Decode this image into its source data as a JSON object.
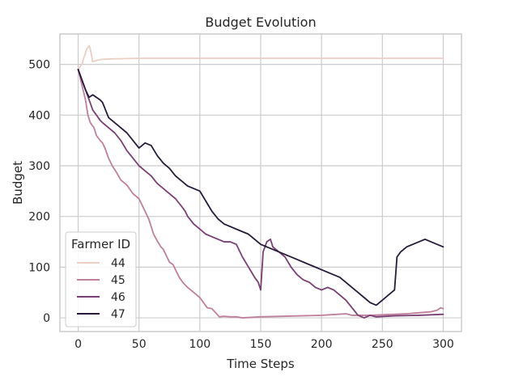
{
  "chart_data": {
    "type": "line",
    "title": "Budget Evolution",
    "xlabel": "Time Steps",
    "ylabel": "Budget",
    "xlim": [
      -15,
      315
    ],
    "ylim": [
      -27,
      560
    ],
    "xticks": [
      0,
      50,
      100,
      150,
      200,
      250,
      300
    ],
    "yticks": [
      0,
      100,
      200,
      300,
      400,
      500
    ],
    "grid": true,
    "legend": {
      "title": "Farmer ID",
      "placement": "lower-left"
    },
    "series": [
      {
        "name": "44",
        "color": "#ebcec4",
        "points": [
          [
            0,
            490
          ],
          [
            3,
            500
          ],
          [
            5,
            515
          ],
          [
            7,
            530
          ],
          [
            9,
            537
          ],
          [
            10,
            530
          ],
          [
            12,
            505
          ],
          [
            14,
            507
          ],
          [
            17,
            509
          ],
          [
            20,
            510
          ],
          [
            30,
            511
          ],
          [
            50,
            512
          ],
          [
            100,
            512
          ],
          [
            200,
            512
          ],
          [
            300,
            512
          ]
        ]
      },
      {
        "name": "45",
        "color": "#c07f9c",
        "points": [
          [
            0,
            490
          ],
          [
            2,
            470
          ],
          [
            4,
            450
          ],
          [
            6,
            430
          ],
          [
            8,
            400
          ],
          [
            10,
            385
          ],
          [
            13,
            375
          ],
          [
            15,
            360
          ],
          [
            18,
            350
          ],
          [
            20,
            345
          ],
          [
            22,
            335
          ],
          [
            25,
            315
          ],
          [
            28,
            300
          ],
          [
            32,
            285
          ],
          [
            35,
            272
          ],
          [
            40,
            262
          ],
          [
            45,
            245
          ],
          [
            50,
            235
          ],
          [
            55,
            210
          ],
          [
            58,
            195
          ],
          [
            60,
            180
          ],
          [
            62,
            165
          ],
          [
            65,
            152
          ],
          [
            68,
            140
          ],
          [
            70,
            135
          ],
          [
            72,
            125
          ],
          [
            75,
            110
          ],
          [
            78,
            105
          ],
          [
            80,
            95
          ],
          [
            83,
            80
          ],
          [
            86,
            70
          ],
          [
            90,
            60
          ],
          [
            95,
            50
          ],
          [
            100,
            40
          ],
          [
            103,
            30
          ],
          [
            106,
            20
          ],
          [
            110,
            18
          ],
          [
            113,
            10
          ],
          [
            116,
            2
          ],
          [
            120,
            3
          ],
          [
            125,
            2
          ],
          [
            130,
            2
          ],
          [
            135,
            0
          ],
          [
            150,
            2
          ],
          [
            200,
            5
          ],
          [
            220,
            8
          ],
          [
            225,
            5
          ],
          [
            240,
            5
          ],
          [
            260,
            7
          ],
          [
            270,
            8
          ],
          [
            280,
            10
          ],
          [
            290,
            12
          ],
          [
            295,
            15
          ],
          [
            298,
            20
          ],
          [
            300,
            18
          ]
        ]
      },
      {
        "name": "46",
        "color": "#7a3f74",
        "points": [
          [
            0,
            490
          ],
          [
            3,
            470
          ],
          [
            6,
            450
          ],
          [
            9,
            430
          ],
          [
            12,
            410
          ],
          [
            15,
            400
          ],
          [
            18,
            390
          ],
          [
            20,
            385
          ],
          [
            25,
            375
          ],
          [
            30,
            365
          ],
          [
            35,
            350
          ],
          [
            40,
            330
          ],
          [
            45,
            315
          ],
          [
            50,
            300
          ],
          [
            55,
            290
          ],
          [
            60,
            280
          ],
          [
            65,
            265
          ],
          [
            70,
            255
          ],
          [
            75,
            245
          ],
          [
            80,
            235
          ],
          [
            85,
            220
          ],
          [
            88,
            210
          ],
          [
            90,
            200
          ],
          [
            95,
            185
          ],
          [
            100,
            175
          ],
          [
            105,
            165
          ],
          [
            110,
            160
          ],
          [
            115,
            155
          ],
          [
            120,
            150
          ],
          [
            125,
            150
          ],
          [
            130,
            145
          ],
          [
            135,
            120
          ],
          [
            140,
            100
          ],
          [
            145,
            80
          ],
          [
            148,
            70
          ],
          [
            150,
            55
          ],
          [
            152,
            130
          ],
          [
            155,
            150
          ],
          [
            158,
            155
          ],
          [
            160,
            140
          ],
          [
            165,
            130
          ],
          [
            170,
            120
          ],
          [
            175,
            100
          ],
          [
            180,
            85
          ],
          [
            185,
            75
          ],
          [
            190,
            70
          ],
          [
            195,
            60
          ],
          [
            200,
            55
          ],
          [
            205,
            60
          ],
          [
            210,
            55
          ],
          [
            215,
            45
          ],
          [
            220,
            35
          ],
          [
            225,
            20
          ],
          [
            230,
            5
          ],
          [
            235,
            0
          ],
          [
            240,
            5
          ],
          [
            245,
            2
          ],
          [
            260,
            4
          ],
          [
            280,
            5
          ],
          [
            300,
            7
          ]
        ]
      },
      {
        "name": "47",
        "color": "#271b3b",
        "points": [
          [
            0,
            490
          ],
          [
            3,
            470
          ],
          [
            6,
            450
          ],
          [
            9,
            435
          ],
          [
            12,
            440
          ],
          [
            15,
            435
          ],
          [
            18,
            430
          ],
          [
            20,
            425
          ],
          [
            25,
            395
          ],
          [
            30,
            385
          ],
          [
            35,
            375
          ],
          [
            40,
            365
          ],
          [
            45,
            350
          ],
          [
            50,
            335
          ],
          [
            55,
            345
          ],
          [
            60,
            340
          ],
          [
            65,
            320
          ],
          [
            70,
            305
          ],
          [
            75,
            295
          ],
          [
            80,
            280
          ],
          [
            85,
            270
          ],
          [
            90,
            260
          ],
          [
            95,
            255
          ],
          [
            100,
            250
          ],
          [
            105,
            230
          ],
          [
            110,
            210
          ],
          [
            115,
            195
          ],
          [
            120,
            185
          ],
          [
            125,
            180
          ],
          [
            130,
            175
          ],
          [
            135,
            170
          ],
          [
            140,
            165
          ],
          [
            145,
            155
          ],
          [
            150,
            145
          ],
          [
            155,
            140
          ],
          [
            160,
            135
          ],
          [
            165,
            130
          ],
          [
            170,
            125
          ],
          [
            175,
            120
          ],
          [
            180,
            115
          ],
          [
            185,
            110
          ],
          [
            190,
            105
          ],
          [
            195,
            100
          ],
          [
            200,
            95
          ],
          [
            205,
            90
          ],
          [
            210,
            85
          ],
          [
            215,
            80
          ],
          [
            220,
            70
          ],
          [
            225,
            60
          ],
          [
            230,
            50
          ],
          [
            235,
            40
          ],
          [
            240,
            30
          ],
          [
            245,
            25
          ],
          [
            250,
            35
          ],
          [
            255,
            45
          ],
          [
            260,
            55
          ],
          [
            262,
            120
          ],
          [
            265,
            130
          ],
          [
            270,
            140
          ],
          [
            275,
            145
          ],
          [
            280,
            150
          ],
          [
            285,
            155
          ],
          [
            290,
            150
          ],
          [
            295,
            145
          ],
          [
            300,
            140
          ]
        ]
      }
    ]
  }
}
